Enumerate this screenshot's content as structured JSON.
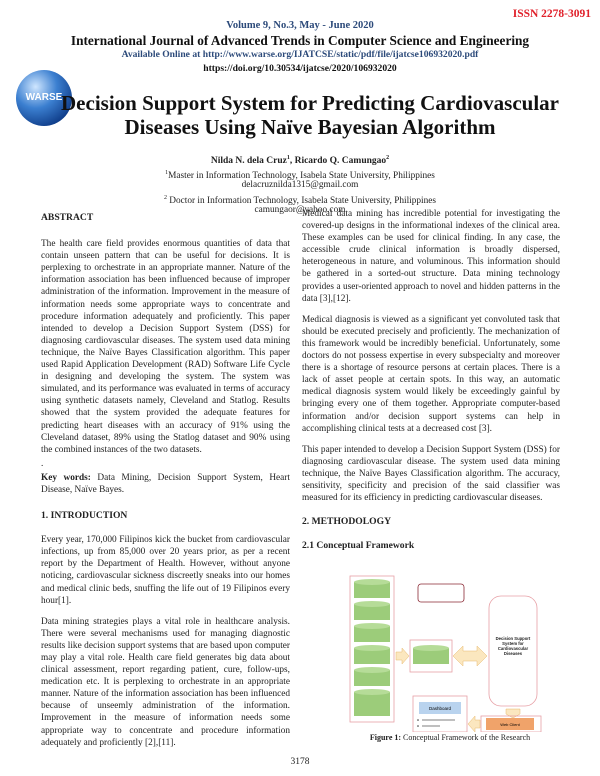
{
  "header": {
    "issn": "ISSN 2278-3091",
    "volume": "Volume 9, No.3, May - June 2020",
    "journal": "International Journal of Advanced Trends in Computer Science and Engineering",
    "available": "Available Online at http://www.warse.org/IJATCSE/static/pdf/file/ijatcse106932020.pdf",
    "doi": "https://doi.org/10.30534/ijatcse/2020/106932020",
    "logo_text": "WARSE"
  },
  "paper": {
    "title_line1": "Decision Support System for Predicting Cardiovascular",
    "title_line2": "Diseases Using Naïve Bayesian Algorithm",
    "author1": "Nilda N. dela Cruz",
    "author1_sup": "1",
    "author_sep": ", ",
    "author2": "Ricardo Q. Camungao",
    "author2_sup": "2",
    "aff1_sup": "1",
    "aff1": "Master in Information Technology, Isabela State University, Philippines",
    "email1": "delacruznilda1315@gmail.com",
    "aff2_sup": "2",
    "aff2": " Doctor in Information Technology, Isabela State University, Philippines",
    "email2": "camungaor@yahoo.com"
  },
  "left": {
    "abstract_heading": "ABSTRACT",
    "abstract": "The health care field provides enormous quantities of data that contain unseen pattern that can be useful for decisions. It is perplexing to orchestrate in an appropriate manner. Nature of the information association has been influenced because of improper administration of the information. Improvement in the measure of information needs some appropriate ways to concentrate and procedure information adequately and proficiently. This paper intended to develop a Decision Support System (DSS) for diagnosing cardiovascular diseases. The system used data mining technique, the Naïve Bayes Classification algorithm.  This paper used Rapid Application Development (RAD) Software Life Cycle in designing and developing the system. The system was simulated, and its performance was evaluated in terms of accuracy using synthetic datasets namely, Cleveland and Statlog. Results showed that the system provided the adequate features for predicting heart diseases with an accuracy of 91% using the Cleveland dataset, 89% using the Statlog dataset and 90% using the combined instances of the two datasets.",
    "dot": ".",
    "keywords_label": "Key words:",
    "keywords": " Data Mining, Decision Support System, Heart Disease, Naïve Bayes.",
    "intro_heading": "1. INTRODUCTION",
    "intro_p1": "Every year, 170,000 Filipinos kick the bucket from cardiovascular infections, up from 85,000 over 20 years prior, as per a recent report by the Department of Health. However, without anyone noticing, cardiovascular sickness discreetly sneaks into our homes and medical clinic beds, snuffing the life out of 19 Filipinos every hour[1].",
    "intro_p2": "Data mining strategies plays a vital role in healthcare analysis. There were several mechanisms used for managing diagnostic results like decision support systems that are based upon computer may play a vital role. Health care field generates big data about clinical assessment, report regarding patient, cure, follow-ups, medication etc. It is perplexing to orchestrate in an appropriate manner. Nature of the information association has been influenced because of unseemly administration of the information. Improvement in the measure of information needs some appropriate way to concentrate and procedure information adequately and proficiently [2],[11]."
  },
  "right": {
    "p1": "Medical data mining has incredible potential for investigating the covered-up designs in the informational indexes of the clinical area. These examples can be used for clinical finding. In any case, the accessible crude clinical information is broadly dispersed, heterogeneous in nature, and voluminous. This information should be gathered in a sorted-out structure. Data mining technology provides a user-oriented approach to novel and hidden patterns in the data [3],[12].",
    "p2": "Medical diagnosis is viewed as a significant yet convoluted task that should be executed precisely and proficiently. The mechanization of this framework would be incredibly beneficial. Unfortunately, some doctors do not possess expertise in every subspecialty and moreover there is a shortage of resource persons at certain places. There is a lack of asset people at certain spots. In this way, an automatic medical diagnosis system would likely be exceedingly gainful by bringing every one of them together. Appropriate computer-based information and/or decision support systems can help in accomplishing clinical tests at a decreased cost [3].",
    "p3": "This paper intended to develop a Decision Support System (DSS) for diagnosing cardiovascular disease. The system used data mining technique, the Naïve Bayes Classification algorithm.  The accuracy, sensitivity, specificity and precision of the said classifier was measured for its efficiency in predicting cardiovascular diseases.",
    "method_heading": "2. METHODOLOGY",
    "sub_heading": "2.1 Conceptual Framework"
  },
  "figure": {
    "dss_label": "Decision Support System for Cardiovascular Diseases",
    "dashboard_label": "Dashboard",
    "web_client_label": "Web Client",
    "caption_label": "Figure 1:",
    "caption": " Conceptual Framework of the Research",
    "colors": {
      "cylinder": "#9ccc7a",
      "frame": "#e7a0a6",
      "arrow": "#fbe7bf",
      "dashboard": "#b9d3ee",
      "web_client": "#f0a36a"
    }
  },
  "footer": {
    "page_number": "3178"
  }
}
